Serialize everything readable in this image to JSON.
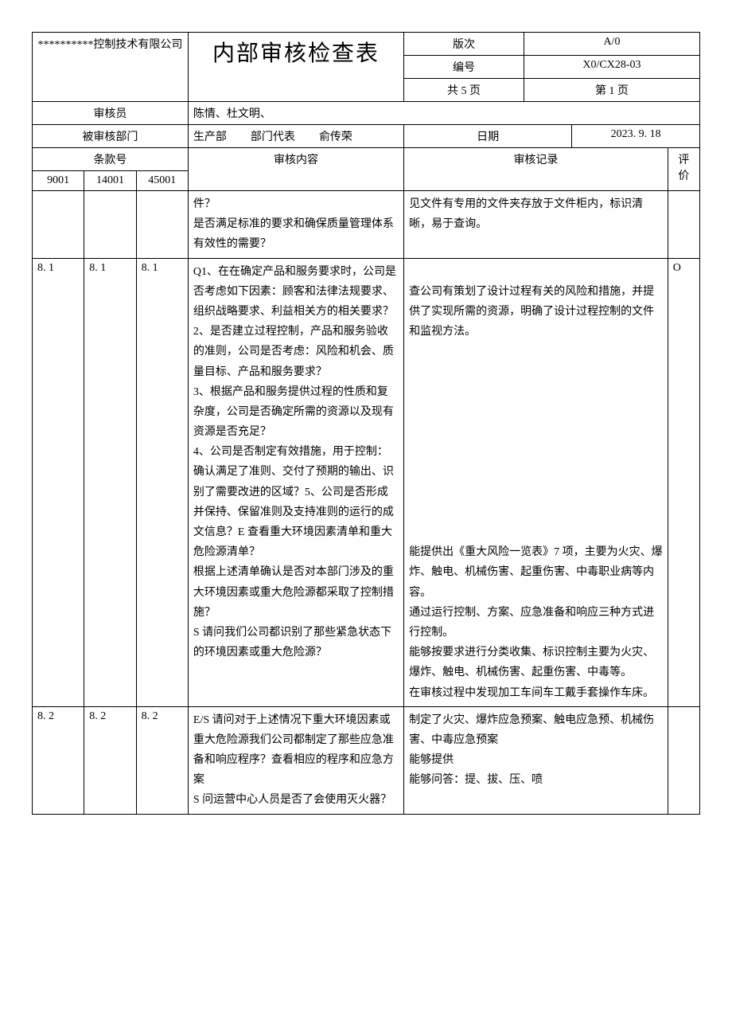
{
  "header": {
    "company": "**********控制技术有限公司",
    "title": "内部审核检查表",
    "version_label": "版次",
    "version_value": "A/0",
    "doc_no_label": "编号",
    "doc_no_value": "X0/CX28-03",
    "page_total": "共 5 页",
    "page_current": "第 1 页"
  },
  "meta": {
    "auditor_label": "审核员",
    "auditor_value": "陈情、杜文明、",
    "audited_dept_label": "被审核部门",
    "audited_dept_value": "生产部",
    "dept_rep_label": "部门代表",
    "dept_rep_value": "俞传荣",
    "date_label": "日期",
    "date_value": "2023. 9. 18"
  },
  "columns": {
    "clause_label": "条款号",
    "c9001": "9001",
    "c14001": "14001",
    "c45001": "45001",
    "content_label": "审核内容",
    "record_label": "审核记录",
    "eval_label": "评价"
  },
  "rows": [
    {
      "c9001": "",
      "c14001": "",
      "c45001": "",
      "content": "件？\n是否满足标准的要求和确保质量管理体系有效性的需要？",
      "record": "见文件有专用的文件夹存放于文件柜内，标识清晰，易于查询。",
      "eval": ""
    },
    {
      "c9001": "8. 1",
      "c14001": "8. 1",
      "c45001": "8. 1",
      "content": "Q1、在在确定产品和服务要求时，公司是否考虑如下因素：顾客和法律法规要求、组织战略要求、利益相关方的相关要求？\n2、是否建立过程控制，产品和服务验收的准则，公司是否考虑：风险和机会、质量目标、产品和服务要求？\n3、根据产品和服务提供过程的性质和复杂度，公司是否确定所需的资源以及现有资源是否充足？\n4、公司是否制定有效措施，用于控制：确认满足了准则、交付了预期的输出、识别了需要改进的区域？5、公司是否形成并保持、保留准则及支持准则的运行的成文信息？E 查看重大环境因素清单和重大危险源清单？\n根据上述清单确认是否对本部门涉及的重大环境因素或重大危险源都采取了控制措施？\nS 请问我们公司都识别了那些紧急状态下的环境因素或重大危险源？",
      "record": "\n查公司有策划了设计过程有关的风险和措施，并提供了实现所需的资源，明确了设计过程控制的文件和监视方法。\n\n\n\n\n\n\n\n\n\n\n能提供出《重大风险一览表》7 项，主要为火灾、爆炸、触电、机械伤害、起重伤害、中毒职业病等内容。\n通过运行控制、方案、应急准备和响应三种方式进行控制。\n能够按要求进行分类收集、标识控制主要为火灾、爆炸、触电、机械伤害、起重伤害、中毒等。\n在审核过程中发现加工车间车工戴手套操作车床。",
      "eval": "O"
    },
    {
      "c9001": "8. 2",
      "c14001": "8. 2",
      "c45001": "8. 2",
      "content": "E/S 请问对于上述情况下重大环境因素或重大危险源我们公司都制定了那些应急准备和响应程序？查看相应的程序和应急方案\nS 问运营中心人员是否了会使用灭火器？",
      "record": "制定了火灾、爆炸应急预案、触电应急预、机械伤害、中毒应急预案\n能够提供\n能够问答：提、拔、压、喷",
      "eval": ""
    }
  ]
}
